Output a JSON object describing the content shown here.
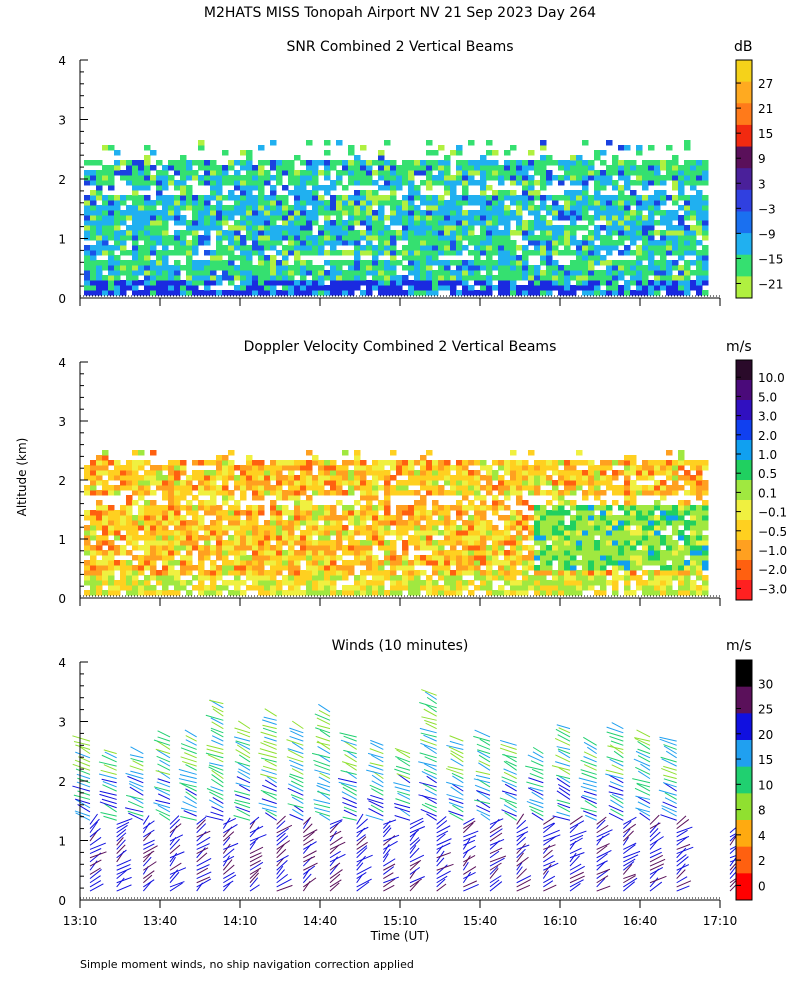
{
  "figure": {
    "title": "M2HATS MISS Tonopah Airport NV  21 Sep 2023 Day 264",
    "y_axis_label": "Altitude (km)",
    "x_axis_label": "Time (UT)",
    "footnote": "Simple moment winds, no ship navigation correction applied",
    "x_tick_labels": [
      "13:10",
      "13:40",
      "14:10",
      "14:40",
      "15:10",
      "15:40",
      "16:10",
      "16:40",
      "17:10"
    ],
    "y_tick_labels": [
      "0",
      "1",
      "2",
      "3",
      "4"
    ]
  },
  "chart_data": [
    {
      "type": "heatmap",
      "title": "SNR Combined 2 Vertical Beams",
      "units": "dB",
      "xlabel": "",
      "ylabel": "Altitude (km)",
      "xlim": [
        "13:10",
        "17:10"
      ],
      "ylim": [
        0,
        4
      ],
      "colorbar_ticks": [
        "27",
        "21",
        "15",
        "9",
        "3",
        "−3",
        "−9",
        "−15",
        "−21"
      ],
      "colorbar_colors": [
        "#f5d21a",
        "#ffaa20",
        "#ff7a1a",
        "#f22a10",
        "#5a105a",
        "#4a209a",
        "#3040e0",
        "#1a70f0",
        "#20b0f0",
        "#35e070",
        "#b0f040"
      ],
      "data_top_km": 2.6,
      "layers": [
        {
          "alt_range": [
            0.0,
            0.35
          ],
          "dominant": "-3"
        },
        {
          "alt_range": [
            0.35,
            1.1
          ],
          "dominant": "-15"
        },
        {
          "alt_range": [
            1.1,
            1.9
          ],
          "dominant": "-9"
        },
        {
          "alt_range": [
            1.9,
            2.5
          ],
          "dominant": "-15"
        }
      ]
    },
    {
      "type": "heatmap",
      "title": "Doppler Velocity Combined 2 Vertical Beams",
      "units": "m/s",
      "xlabel": "",
      "ylabel": "Altitude (km)",
      "xlim": [
        "13:10",
        "17:10"
      ],
      "ylim": [
        0,
        4
      ],
      "colorbar_ticks": [
        "10.0",
        "5.0",
        "3.0",
        "2.0",
        "1.0",
        "0.5",
        "0.1",
        "−0.1",
        "−0.5",
        "−1.0",
        "−2.0",
        "−3.0"
      ],
      "colorbar_colors": [
        "#2a0a2a",
        "#4a0a7a",
        "#3010c0",
        "#1040f0",
        "#10a0f0",
        "#20d060",
        "#a0e840",
        "#f0f040",
        "#ffd020",
        "#ffa020",
        "#ff6010",
        "#ff2020"
      ],
      "data_top_km": 2.5,
      "notes": "Mostly -0.5 to -1.0 m/s below 2.5 km; near 0.5 m/s after 15:50 between 0.5 and 1.6 km"
    },
    {
      "type": "scatter",
      "title": "Winds (10 minutes)",
      "units": "m/s",
      "xlabel": "Time (UT)",
      "ylabel": "Altitude (km)",
      "xlim": [
        "13:10",
        "17:10"
      ],
      "ylim": [
        0,
        4
      ],
      "colorbar_ticks": [
        "30",
        "25",
        "20",
        "15",
        "10",
        "8",
        "4",
        "2",
        "0"
      ],
      "colorbar_colors": [
        "#000000",
        "#5a105a",
        "#1010e0",
        "#20a0f0",
        "#20d070",
        "#90e030",
        "#ffaa10",
        "#ff6010",
        "#ff0000"
      ],
      "profile_times": [
        "13:10",
        "13:20",
        "13:30",
        "13:40",
        "13:50",
        "14:00",
        "14:10",
        "14:20",
        "14:30",
        "14:40",
        "14:50",
        "15:00",
        "15:10",
        "15:20",
        "15:30",
        "15:40",
        "15:50",
        "16:00",
        "16:10",
        "16:20",
        "16:30",
        "16:40",
        "16:50",
        "17:10"
      ],
      "profile_top_km": [
        2.7,
        2.5,
        2.5,
        2.8,
        2.8,
        3.3,
        2.9,
        3.1,
        2.9,
        3.2,
        2.8,
        2.6,
        2.5,
        3.5,
        2.7,
        2.8,
        2.6,
        2.5,
        2.9,
        2.6,
        2.9,
        2.8,
        2.7,
        1.2
      ],
      "speed_bands": [
        {
          "alt_range": [
            0.1,
            1.3
          ],
          "speed_m_s": 6
        },
        {
          "alt_range": [
            1.3,
            2.0
          ],
          "speed_m_s": 10
        },
        {
          "alt_range": [
            2.0,
            3.0
          ],
          "speed_m_s": 16
        }
      ]
    }
  ]
}
